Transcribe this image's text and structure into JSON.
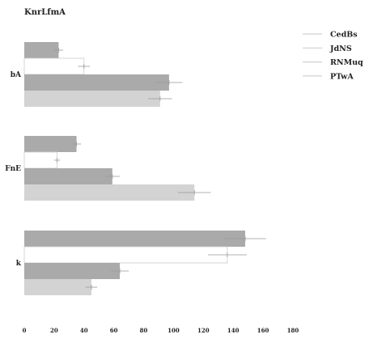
{
  "chart_data": {
    "type": "bar",
    "orientation": "horizontal",
    "title": "KnrLfmA",
    "xlabel": "",
    "ylabel": "",
    "xlim": [
      0,
      180
    ],
    "xticks": [
      "0",
      "20",
      "40",
      "60",
      "80",
      "100",
      "120",
      "140",
      "160",
      "180"
    ],
    "categories": [
      "bA",
      "FnE",
      "k"
    ],
    "legend_position": "top-right",
    "grid": false,
    "series": [
      {
        "name": "CedBs",
        "color": "#aaaaaa",
        "values": [
          23,
          35,
          148
        ],
        "errors": [
          3,
          3,
          14
        ]
      },
      {
        "name": "JdNS",
        "color": "#ffffff",
        "values": [
          40,
          22,
          136
        ],
        "errors": [
          4,
          2,
          13
        ]
      },
      {
        "name": "RNMuq",
        "color": "#aaaaaa",
        "values": [
          97,
          59,
          64
        ],
        "errors": [
          9,
          5,
          6
        ]
      },
      {
        "name": "PTwA",
        "color": "#d3d3d3",
        "values": [
          91,
          114,
          45
        ],
        "errors": [
          8,
          11,
          4
        ]
      }
    ]
  }
}
